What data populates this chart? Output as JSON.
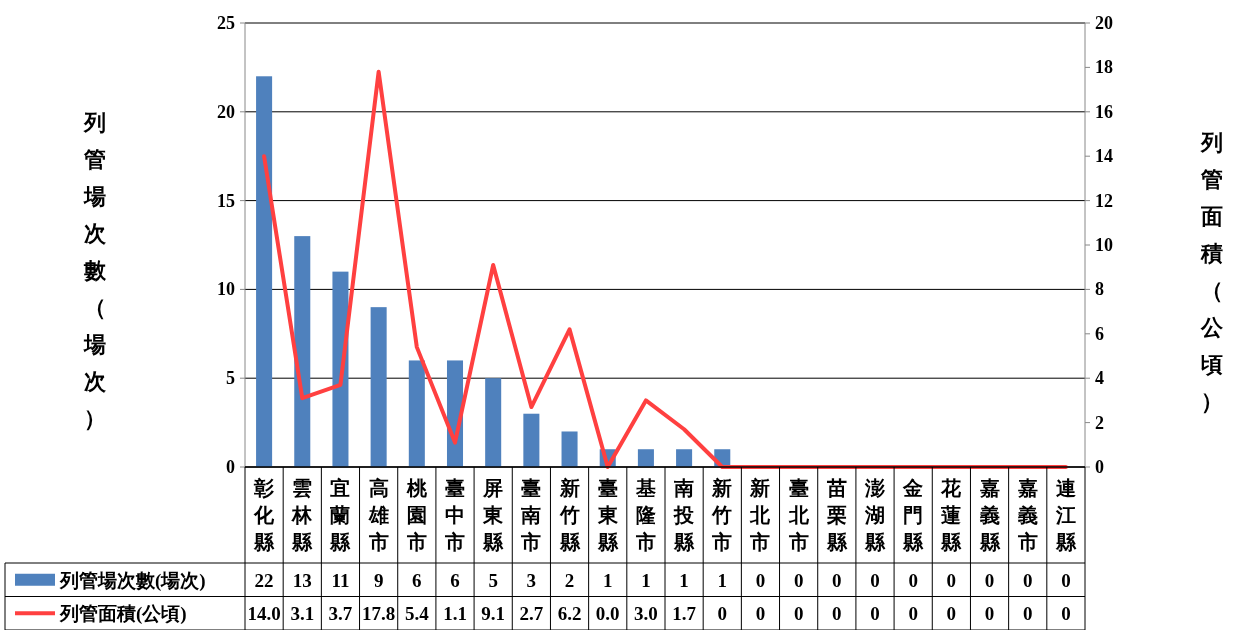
{
  "chart_data": {
    "type": "bar",
    "categories": [
      "彰化縣",
      "雲林縣",
      "宜蘭縣",
      "高雄市",
      "桃園市",
      "臺中市",
      "屏東縣",
      "臺南市",
      "新竹縣",
      "臺東縣",
      "基隆市",
      "南投縣",
      "新竹市",
      "新北市",
      "臺北市",
      "苗栗縣",
      "澎湖縣",
      "金門縣",
      "花蓮縣",
      "嘉義縣",
      "嘉義市",
      "連江縣"
    ],
    "series": [
      {
        "name": "列管場次數(場次)",
        "color": "#4f81bd",
        "values": [
          22,
          13,
          11,
          9,
          6,
          6,
          5,
          3,
          2,
          1,
          1,
          1,
          1,
          0,
          0,
          0,
          0,
          0,
          0,
          0,
          0,
          0
        ],
        "value_labels": [
          "22",
          "13",
          "11",
          "9",
          "6",
          "6",
          "5",
          "3",
          "2",
          "1",
          "1",
          "1",
          "1",
          "0",
          "0",
          "0",
          "0",
          "0",
          "0",
          "0",
          "0",
          "0"
        ]
      },
      {
        "name": "列管面積(公頃)",
        "type": "line",
        "axis": "y2",
        "color": "#ff4040",
        "values": [
          14.0,
          3.1,
          3.7,
          17.8,
          5.4,
          1.1,
          9.1,
          2.7,
          6.2,
          0.0,
          3.0,
          1.7,
          0,
          0,
          0,
          0,
          0,
          0,
          0,
          0,
          0,
          0
        ],
        "value_labels": [
          "14.0",
          "3.1",
          "3.7",
          "17.8",
          "5.4",
          "1.1",
          "9.1",
          "2.7",
          "6.2",
          "0.0",
          "3.0",
          "1.7",
          "0",
          "0",
          "0",
          "0",
          "0",
          "0",
          "0",
          "0",
          "0",
          "0"
        ]
      }
    ],
    "ylabel": "列管場次數（場次）",
    "y2label": "列管面積（公頃）",
    "ylim": [
      0,
      25
    ],
    "yticks": [
      0,
      5,
      10,
      15,
      20,
      25
    ],
    "y2lim": [
      0,
      20
    ],
    "y2ticks": [
      0,
      2,
      4,
      6,
      8,
      10,
      12,
      14,
      16,
      18,
      20
    ],
    "grid": "y",
    "legend": "bottom"
  }
}
